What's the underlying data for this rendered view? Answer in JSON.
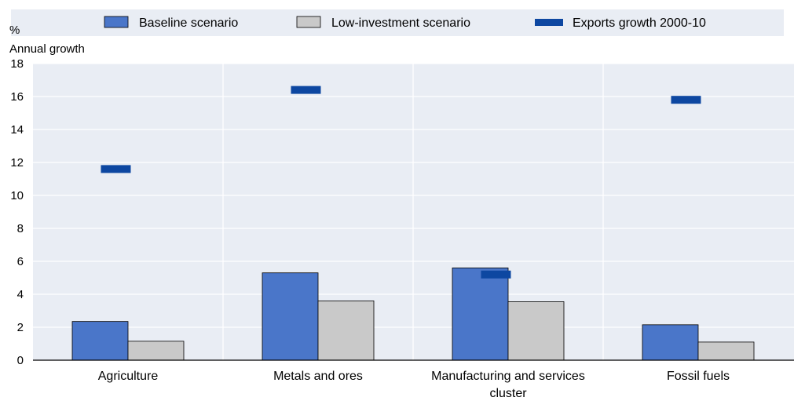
{
  "chart_data": {
    "type": "bar",
    "unit_label": "%",
    "ylabel": "Annual growth",
    "ylim": [
      0,
      18
    ],
    "yticks": [
      0,
      2,
      4,
      6,
      8,
      10,
      12,
      14,
      16,
      18
    ],
    "grid": true,
    "legend_position": "top",
    "categories": [
      [
        "Agriculture"
      ],
      [
        "Metals and ores"
      ],
      [
        "Manufacturing and services",
        "cluster"
      ],
      [
        "Fossil fuels"
      ]
    ],
    "series": [
      {
        "name": "Baseline scenario",
        "kind": "bar",
        "color": "#4a76c9",
        "values": [
          2.35,
          5.3,
          5.6,
          2.15
        ]
      },
      {
        "name": "Low-investment scenario",
        "kind": "bar",
        "color": "#c9c9c9",
        "values": [
          1.15,
          3.6,
          3.55,
          1.1
        ]
      },
      {
        "name": "Exports growth 2000-10",
        "kind": "marker",
        "color": "#0d47a1",
        "values": [
          11.6,
          16.4,
          5.2,
          15.8
        ]
      }
    ],
    "plot_background": "#e9edf4"
  }
}
